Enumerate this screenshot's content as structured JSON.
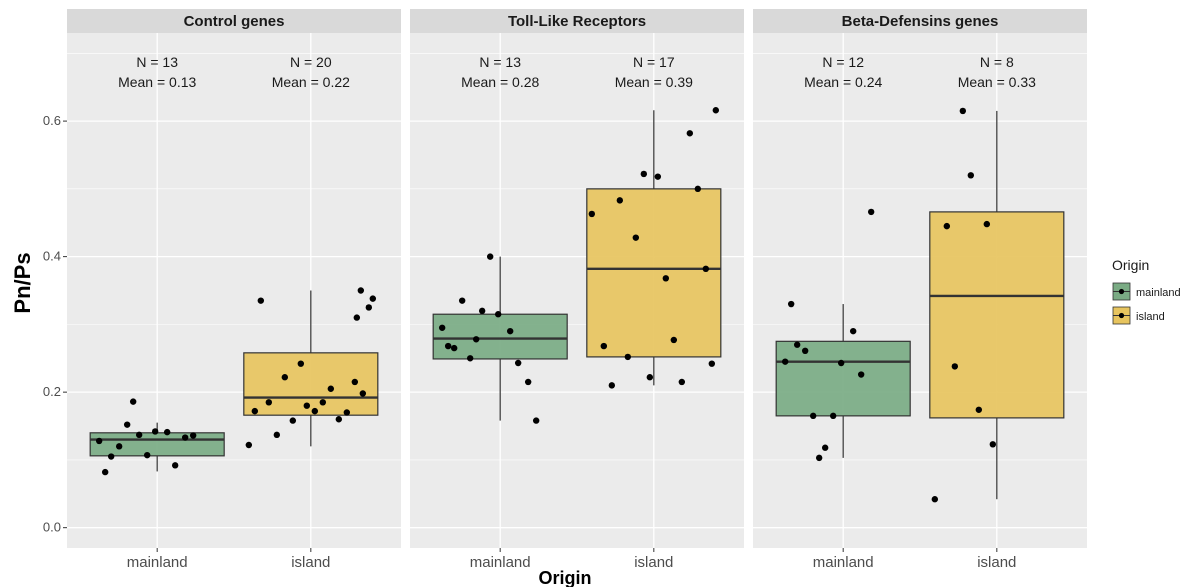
{
  "chart_data": {
    "type": "box",
    "ylabel": "Pn/Ps",
    "xlabel": "Origin",
    "ylim": [
      -0.03,
      0.73
    ],
    "yticks": [
      0.0,
      0.2,
      0.4,
      0.6
    ],
    "ytick_labels": [
      "0.0",
      "0.2",
      "0.4",
      "0.6"
    ],
    "categories": [
      "mainland",
      "island"
    ],
    "grid": true,
    "legend": {
      "title": "Origin",
      "position": "right",
      "items": [
        {
          "label": "mainland",
          "color": "#7aab84"
        },
        {
          "label": "island",
          "color": "#e7c45e"
        }
      ]
    },
    "colors": {
      "mainland": "#7aab84",
      "island": "#e7c45e",
      "panel_bg": "#ebebeb",
      "strip_bg": "#d9d9d9",
      "grid": "#ffffff",
      "line": "#333333"
    },
    "panels": [
      {
        "title": "Control genes",
        "groups": [
          {
            "category": "mainland",
            "n_label": "N = 13",
            "mean_label": "Mean = 0.13",
            "box": {
              "min": 0.083,
              "q1": 0.106,
              "median": 0.13,
              "q3": 0.14,
              "max": 0.155
            },
            "points": [
              0.128,
              0.082,
              0.105,
              0.12,
              0.152,
              0.186,
              0.137,
              0.107,
              0.142,
              0.141,
              0.092,
              0.133,
              0.136
            ]
          },
          {
            "category": "island",
            "n_label": "N = 20",
            "mean_label": "Mean = 0.22",
            "box": {
              "min": 0.12,
              "q1": 0.166,
              "median": 0.192,
              "q3": 0.258,
              "max": 0.35
            },
            "points": [
              0.122,
              0.335,
              0.185,
              0.137,
              0.222,
              0.158,
              0.242,
              0.18,
              0.172,
              0.185,
              0.205,
              0.16,
              0.17,
              0.215,
              0.198,
              0.325,
              0.338,
              0.172,
              0.31,
              0.35
            ]
          }
        ]
      },
      {
        "title": "Toll-Like Receptors",
        "groups": [
          {
            "category": "mainland",
            "n_label": "N = 13",
            "mean_label": "Mean = 0.28",
            "box": {
              "min": 0.158,
              "q1": 0.249,
              "median": 0.279,
              "q3": 0.315,
              "max": 0.4
            },
            "points": [
              0.295,
              0.268,
              0.265,
              0.335,
              0.25,
              0.278,
              0.32,
              0.4,
              0.315,
              0.29,
              0.243,
              0.215,
              0.158
            ]
          },
          {
            "category": "island",
            "n_label": "N = 17",
            "mean_label": "Mean = 0.39",
            "box": {
              "min": 0.21,
              "q1": 0.252,
              "median": 0.382,
              "q3": 0.5,
              "max": 0.616
            },
            "points": [
              0.463,
              0.268,
              0.21,
              0.483,
              0.252,
              0.428,
              0.522,
              0.222,
              0.518,
              0.368,
              0.277,
              0.215,
              0.582,
              0.5,
              0.382,
              0.242,
              0.616
            ]
          }
        ]
      },
      {
        "title": "Beta-Defensins genes",
        "groups": [
          {
            "category": "mainland",
            "n_label": "N = 12",
            "mean_label": "Mean = 0.24",
            "box": {
              "min": 0.103,
              "q1": 0.165,
              "median": 0.245,
              "q3": 0.275,
              "max": 0.33
            },
            "points": [
              0.245,
              0.33,
              0.27,
              0.261,
              0.165,
              0.103,
              0.118,
              0.165,
              0.243,
              0.29,
              0.226,
              0.466
            ]
          },
          {
            "category": "island",
            "n_label": "N = 8",
            "mean_label": "Mean = 0.33",
            "box": {
              "min": 0.042,
              "q1": 0.162,
              "median": 0.342,
              "q3": 0.466,
              "max": 0.615
            },
            "points": [
              0.042,
              0.445,
              0.238,
              0.615,
              0.52,
              0.174,
              0.448,
              0.123
            ]
          }
        ]
      }
    ]
  }
}
